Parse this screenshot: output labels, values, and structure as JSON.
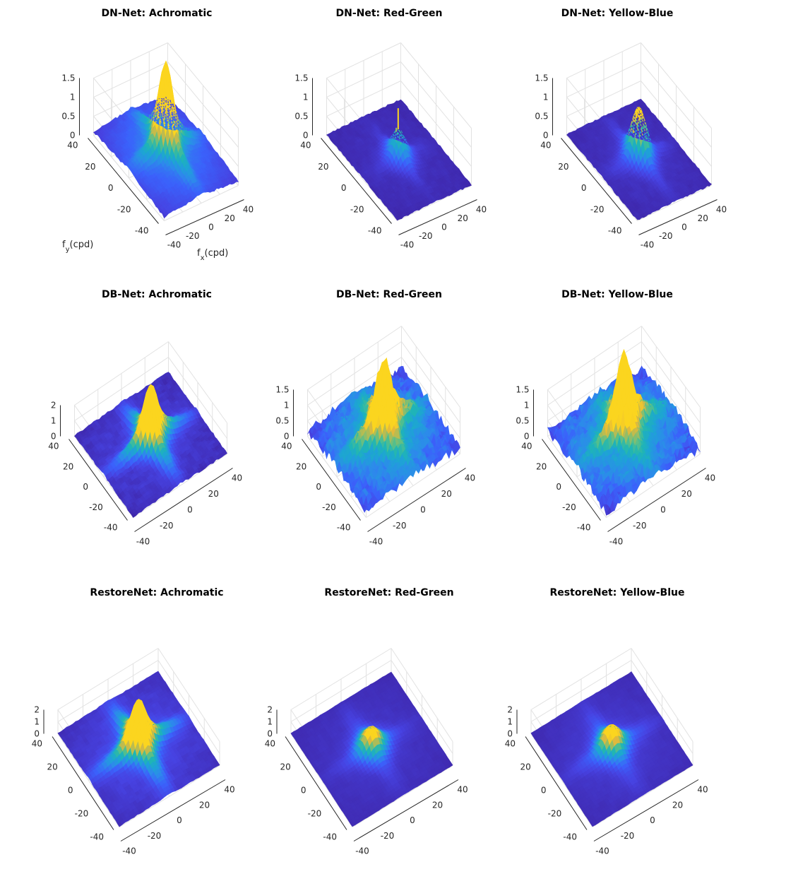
{
  "chart_data": {
    "type": "surface",
    "x_label": "f",
    "x_label_subscript": "x",
    "x_label_unit": "(cpd)",
    "y_label": "f",
    "y_label_subscript": "y",
    "y_label_unit": "(cpd)",
    "xlim": [
      -40,
      40
    ],
    "ylim": [
      -40,
      40
    ],
    "x_ticks": [
      "-40",
      "-20",
      "0",
      "20",
      "40"
    ],
    "y_ticks": [
      "-40",
      "-20",
      "0",
      "20",
      "40"
    ],
    "colormap": [
      "#3e26a8",
      "#4742e1",
      "#3b61fb",
      "#2d8aeb",
      "#1ea3d6",
      "#1fb5b5",
      "#52bf8e",
      "#a3bd5d",
      "#e5b93a",
      "#fbd51f"
    ],
    "grid": true,
    "panels": [
      {
        "title": "DN-Net: Achromatic",
        "zlim": [
          0,
          1.5
        ],
        "z_ticks": [
          "0",
          "0.5",
          "1",
          "1.5"
        ],
        "center_peak": 1.05,
        "axis_peaks": 0.75,
        "floor": 0.35,
        "spikes": [],
        "noise": 0.03
      },
      {
        "title": "DN-Net: Red-Green",
        "zlim": [
          0,
          1.5
        ],
        "z_ticks": [
          "0",
          "0.5",
          "1",
          "1.5"
        ],
        "center_peak": 0.55,
        "axis_peaks": 0.12,
        "floor": 0.05,
        "spikes": [
          1.3,
          0.85
        ],
        "noise": 0.02
      },
      {
        "title": "DN-Net: Yellow-Blue",
        "zlim": [
          0,
          1.5
        ],
        "z_ticks": [
          "0",
          "0.5",
          "1",
          "1.5"
        ],
        "center_peak": 1.0,
        "axis_peaks": 0.22,
        "floor": 0.06,
        "spikes": [
          1.2,
          1.1
        ],
        "noise": 0.02
      },
      {
        "title": "DB-Net: Achromatic",
        "zlim": [
          0,
          2
        ],
        "z_ticks": [
          "0",
          "1",
          "2"
        ],
        "center_peak": 1.7,
        "axis_peaks": 1.3,
        "floor": 0.15,
        "spikes": [],
        "noise": 0.06
      },
      {
        "title": "DB-Net: Red-Green",
        "zlim": [
          0,
          1.5
        ],
        "z_ticks": [
          "0",
          "0.5",
          "1",
          "1.5"
        ],
        "center_peak": 1.0,
        "axis_peaks": 0.8,
        "floor": 0.55,
        "spikes": [],
        "noise": 0.15
      },
      {
        "title": "DB-Net: Yellow-Blue",
        "zlim": [
          0,
          1.5
        ],
        "z_ticks": [
          "0",
          "0.5",
          "1",
          "1.5"
        ],
        "center_peak": 1.1,
        "axis_peaks": 0.8,
        "floor": 0.55,
        "spikes": [],
        "noise": 0.15
      },
      {
        "title": "RestoreNet: Achromatic",
        "zlim": [
          0,
          2
        ],
        "z_ticks": [
          "0",
          "1",
          "2"
        ],
        "center_peak": 1.9,
        "axis_peaks": 1.3,
        "floor": 0.2,
        "spikes": [],
        "noise": 0.04
      },
      {
        "title": "RestoreNet: Red-Green",
        "zlim": [
          0,
          2
        ],
        "z_ticks": [
          "0",
          "1",
          "2"
        ],
        "center_peak": 1.3,
        "axis_peaks": 0.25,
        "floor": 0.1,
        "spikes": [],
        "noise": 0.02
      },
      {
        "title": "RestoreNet: Yellow-Blue",
        "zlim": [
          0,
          2
        ],
        "z_ticks": [
          "0",
          "1",
          "2"
        ],
        "center_peak": 1.3,
        "axis_peaks": 0.35,
        "floor": 0.12,
        "spikes": [],
        "noise": 0.02
      }
    ]
  }
}
